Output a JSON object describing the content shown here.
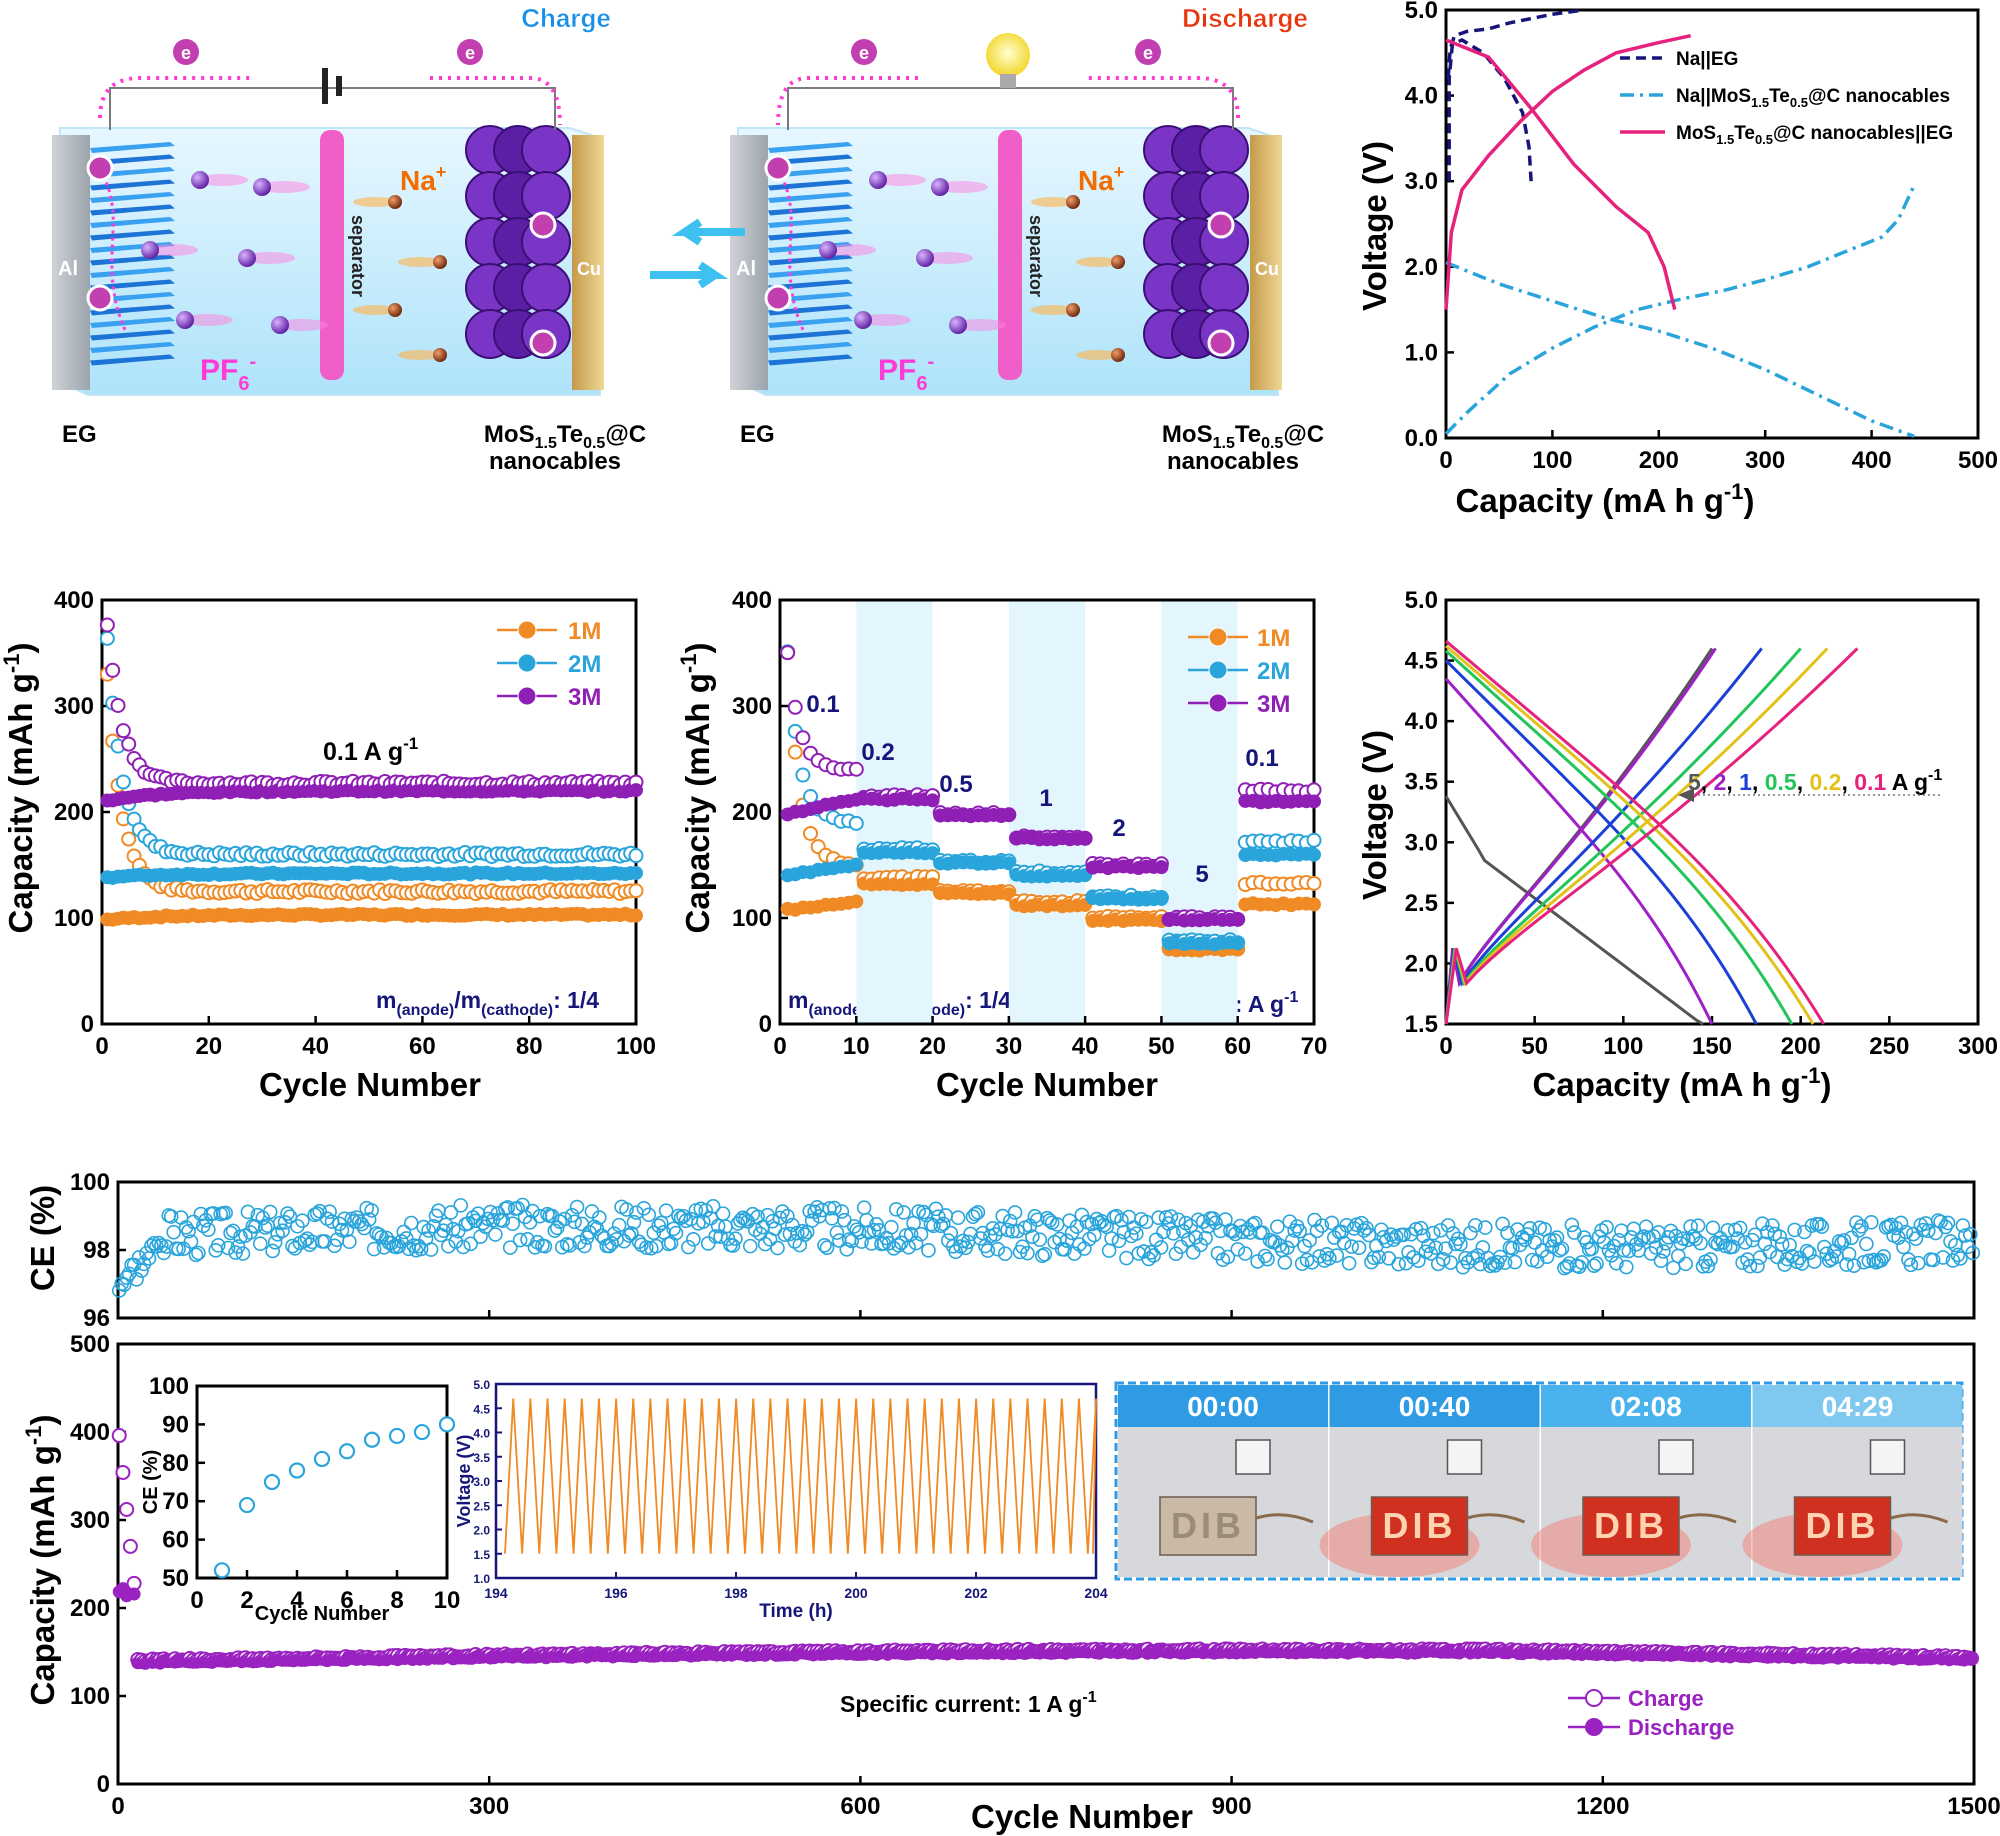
{
  "schematic": {
    "charge_title": "Charge",
    "discharge_title": "Discharge",
    "electron": "e",
    "cation": "Na",
    "cation_sup": "+",
    "anion": "PF",
    "anion_sub": "6",
    "anion_sup": "-",
    "separator": "separator",
    "al": "Al",
    "cu": "Cu",
    "eg": "EG",
    "mos_a": "MoS",
    "mos_b": "1.5",
    "mos_c": "Te",
    "mos_d": "0.5",
    "mos_e": "@C",
    "nanocables": "nanocables",
    "colors": {
      "charge_title": "#1a8fe8",
      "discharge_title": "#e8350d",
      "electron_path": "#ff3bd6",
      "separator": "#f05fc8",
      "anion": "#ff3bd6",
      "cation": "#f26d00"
    }
  },
  "chart_data": [
    {
      "id": "voltage_profiles_top",
      "type": "line",
      "xlabel": "Capacity (mA h g",
      "xlabel_sup": "-1",
      "xlabel_end": ")",
      "ylabel": "Voltage (V)",
      "xlim": [
        0,
        500
      ],
      "ylim": [
        0,
        5
      ],
      "xticks": [
        0,
        100,
        200,
        300,
        400,
        500
      ],
      "yticks": [
        "0.0",
        "1.0",
        "2.0",
        "3.0",
        "4.0",
        "5.0"
      ],
      "legend_position": "top-right",
      "series": [
        {
          "name": "Na||EG",
          "style": "dash",
          "color": "#16167a",
          "segments": [
            [
              [
                2,
                4.2
              ],
              [
                4,
                4.55
              ],
              [
                8,
                4.7
              ],
              [
                20,
                4.75
              ],
              [
                40,
                4.78
              ],
              [
                60,
                4.85
              ],
              [
                80,
                4.9
              ],
              [
                100,
                4.95
              ],
              [
                130,
                5.0
              ]
            ],
            [
              [
                3,
                3.0
              ],
              [
                3,
                4.2
              ],
              [
                6,
                4.6
              ],
              [
                15,
                4.65
              ],
              [
                35,
                4.5
              ],
              [
                55,
                4.2
              ],
              [
                72,
                3.8
              ],
              [
                78,
                3.4
              ],
              [
                80,
                3.0
              ]
            ]
          ]
        },
        {
          "name": "Na||MoS1.5Te0.5@C nanocables",
          "style": "dashdot",
          "color": "#2aa5dc",
          "segments": [
            [
              [
                0,
                0.05
              ],
              [
                20,
                0.3
              ],
              [
                60,
                0.75
              ],
              [
                100,
                1.05
              ],
              [
                140,
                1.3
              ],
              [
                180,
                1.5
              ],
              [
                220,
                1.62
              ],
              [
                260,
                1.72
              ],
              [
                300,
                1.85
              ],
              [
                340,
                2.0
              ],
              [
                380,
                2.2
              ],
              [
                410,
                2.35
              ],
              [
                425,
                2.55
              ],
              [
                440,
                2.95
              ]
            ],
            [
              [
                0,
                2.05
              ],
              [
                50,
                1.8
              ],
              [
                100,
                1.6
              ],
              [
                150,
                1.4
              ],
              [
                200,
                1.25
              ],
              [
                250,
                1.05
              ],
              [
                300,
                0.8
              ],
              [
                350,
                0.5
              ],
              [
                400,
                0.2
              ],
              [
                440,
                0.02
              ]
            ]
          ]
        },
        {
          "name": "MoS1.5Te0.5@C nanocables||EG",
          "style": "solid",
          "color": "#e5227c",
          "segments": [
            [
              [
                0,
                1.5
              ],
              [
                5,
                2.4
              ],
              [
                15,
                2.9
              ],
              [
                40,
                3.3
              ],
              [
                70,
                3.7
              ],
              [
                100,
                4.05
              ],
              [
                130,
                4.3
              ],
              [
                160,
                4.5
              ],
              [
                200,
                4.62
              ],
              [
                230,
                4.7
              ]
            ],
            [
              [
                0,
                4.65
              ],
              [
                40,
                4.45
              ],
              [
                80,
                3.85
              ],
              [
                120,
                3.2
              ],
              [
                160,
                2.7
              ],
              [
                190,
                2.4
              ],
              [
                205,
                2.0
              ],
              [
                215,
                1.5
              ]
            ]
          ]
        }
      ]
    },
    {
      "id": "cycling_concentration",
      "type": "scatter",
      "xlabel": "Cycle Number",
      "ylabel": "Capacity (mAh g",
      "ylabel_sup": "-1",
      "ylabel_end": ")",
      "xlim": [
        0,
        100
      ],
      "ylim": [
        0,
        400
      ],
      "xticks": [
        0,
        20,
        40,
        60,
        80,
        100
      ],
      "yticks": [
        0,
        100,
        200,
        300,
        400
      ],
      "annotation_a": "0.1 A g",
      "annotation_a_sup": "-1",
      "ratio_a": "m",
      "ratio_b": "(anode)",
      "ratio_c": "/m",
      "ratio_d": "(cathode)",
      "ratio_e": ": 1/4",
      "legend_position": "top-right",
      "series": [
        {
          "name": "1M",
          "color": "#f08a24",
          "charge": {
            "start": 330,
            "plateau": 125
          },
          "discharge": {
            "start": 98,
            "plateau": 103
          }
        },
        {
          "name": "2M",
          "color": "#2aa5dc",
          "charge": {
            "start": 365,
            "plateau": 160
          },
          "discharge": {
            "start": 138,
            "plateau": 142
          }
        },
        {
          "name": "3M",
          "color": "#8f1fb5",
          "charge": {
            "start": 378,
            "plateau": 227
          },
          "discharge": {
            "start": 210,
            "plateau": 220
          }
        }
      ]
    },
    {
      "id": "rate_performance",
      "type": "scatter",
      "xlabel": "Cycle Number",
      "ylabel": "Capacity (mAh g",
      "ylabel_sup": "-1",
      "ylabel_end": ")",
      "xlim": [
        0,
        70
      ],
      "ylim": [
        0,
        400
      ],
      "xticks": [
        0,
        10,
        20,
        30,
        40,
        50,
        60,
        70
      ],
      "yticks": [
        0,
        100,
        200,
        300,
        400
      ],
      "rate_labels": [
        "0.1",
        "0.2",
        "0.5",
        "1",
        "2",
        "5",
        "0.1"
      ],
      "unit_label": "Unit: A g",
      "unit_sup": "-1",
      "ratio_a": "m",
      "ratio_b": "(anode)",
      "ratio_c": "/m",
      "ratio_d": "(cathode)",
      "ratio_e": ": 1/4",
      "legend_position": "top-right",
      "series": [
        {
          "name": "1M",
          "color": "#f08a24",
          "charge_levels": [
            150,
            138,
            125,
            115,
            100,
            72,
            133
          ],
          "discharge_levels": [
            115,
            132,
            123,
            112,
            98,
            70,
            113
          ]
        },
        {
          "name": "2M",
          "color": "#2aa5dc",
          "charge_levels": [
            190,
            165,
            153,
            143,
            120,
            78,
            172
          ],
          "discharge_levels": [
            150,
            162,
            152,
            140,
            118,
            76,
            160
          ]
        },
        {
          "name": "3M",
          "color": "#8f1fb5",
          "charge_levels": [
            240,
            215,
            198,
            176,
            150,
            100,
            220
          ],
          "discharge_levels": [
            212,
            212,
            197,
            175,
            148,
            98,
            210
          ]
        }
      ]
    },
    {
      "id": "rate_voltage_profiles",
      "type": "line",
      "xlabel": "Capacity (mA h g",
      "xlabel_sup": "-1",
      "xlabel_end": ")",
      "ylabel": "Voltage (V)",
      "xlim": [
        0,
        300
      ],
      "ylim": [
        1.5,
        5.0
      ],
      "xticks": [
        0,
        50,
        100,
        150,
        200,
        250,
        300
      ],
      "yticks": [
        "1.5",
        "2.0",
        "2.5",
        "3.0",
        "3.5",
        "4.0",
        "4.5",
        "5.0"
      ],
      "rates": [
        {
          "label": "5",
          "color": "#555555",
          "discharge_cap": 145,
          "charge_cap": 150,
          "dis_start": 3.38
        },
        {
          "label": "2",
          "color": "#a020c8",
          "discharge_cap": 150,
          "charge_cap": 152,
          "dis_start": 4.35
        },
        {
          "label": "1",
          "color": "#1c3fd6",
          "discharge_cap": 175,
          "charge_cap": 178,
          "dis_start": 4.5
        },
        {
          "label": "0.5",
          "color": "#22c55a",
          "discharge_cap": 195,
          "charge_cap": 200,
          "dis_start": 4.58
        },
        {
          "label": "0.2",
          "color": "#e2c21a",
          "discharge_cap": 207,
          "charge_cap": 215,
          "dis_start": 4.62
        },
        {
          "label": "0.1",
          "color": "#e5227c",
          "discharge_cap": 213,
          "charge_cap": 232,
          "dis_start": 4.66
        }
      ],
      "rates_unit": "A g",
      "rates_unit_sup": "-1"
    },
    {
      "id": "long_cycling",
      "type": "scatter",
      "xlabel": "Cycle Number",
      "ylabel_top": "CE (%)",
      "ylabel": "Capacity (mAh g",
      "ylabel_sup": "-1",
      "ylabel_end": ")",
      "xlim": [
        0,
        1500
      ],
      "ylim": [
        0,
        500
      ],
      "ce_lim": [
        96,
        100
      ],
      "xticks": [
        0,
        300,
        600,
        900,
        1200,
        1500
      ],
      "yticks": [
        0,
        100,
        200,
        300,
        400,
        500
      ],
      "ce_ticks": [
        96,
        98,
        100
      ],
      "ce_mean": 98.4,
      "charge_plateau": 140,
      "discharge_plateau": 138,
      "first_cycle": 410,
      "annotation": "Specific current: 1 A g",
      "annotation_sup": "-1",
      "legend": [
        {
          "name": "Charge",
          "color": "#9a22c0",
          "filled": false
        },
        {
          "name": "Discharge",
          "color": "#9a22c0",
          "filled": true
        }
      ],
      "legend_position": "bottom-right",
      "colors": {
        "ce": "#2aa5dc",
        "capacity": "#9a22c0"
      }
    },
    {
      "id": "inset_ce",
      "type": "scatter",
      "xlabel": "Cycle Number",
      "ylabel": "CE (%)",
      "xlim": [
        0,
        10
      ],
      "ylim": [
        50,
        100
      ],
      "xticks": [
        0,
        2,
        4,
        6,
        8,
        10
      ],
      "yticks": [
        50,
        60,
        70,
        80,
        90,
        100
      ],
      "x": [
        1,
        2,
        3,
        4,
        5,
        6,
        7,
        8,
        9,
        10
      ],
      "y": [
        52,
        69,
        75,
        78,
        81,
        83,
        86,
        87,
        88,
        90
      ],
      "color": "#2aa5dc"
    },
    {
      "id": "inset_voltage_time",
      "type": "line",
      "xlabel": "Time (h)",
      "ylabel": "Voltage (V)",
      "xlim": [
        194,
        204
      ],
      "ylim": [
        1,
        5
      ],
      "xticks": [
        194,
        196,
        198,
        200,
        202,
        204
      ],
      "yticks": [
        "1.0",
        "1.5",
        "2.0",
        "2.5",
        "3.0",
        "3.5",
        "4.0",
        "4.5",
        "5.0"
      ],
      "v_min": 1.5,
      "v_max": 4.7,
      "cycles": 35,
      "color": "#f08a24"
    }
  ],
  "photos": {
    "labels": [
      "00:00",
      "00:40",
      "02:08",
      "04:29"
    ],
    "led_text": "DIB",
    "header_color": "#2e9be4"
  }
}
